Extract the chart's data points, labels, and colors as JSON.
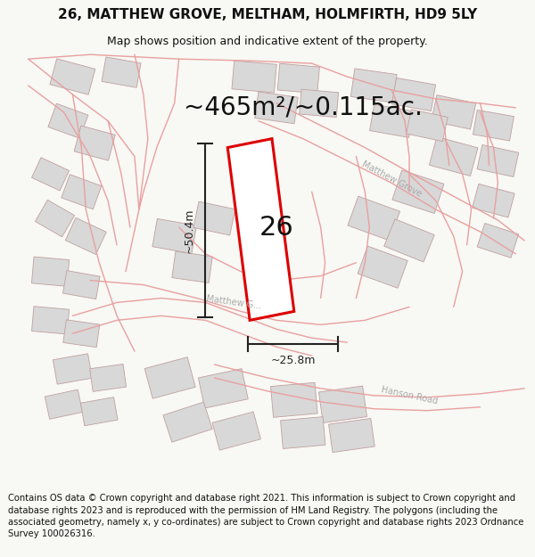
{
  "title_line1": "26, MATTHEW GROVE, MELTHAM, HOLMFIRTH, HD9 5LY",
  "title_line2": "Map shows position and indicative extent of the property.",
  "area_label": "~465m²/~0.115ac.",
  "plot_number": "26",
  "dim_vertical": "~50.4m",
  "dim_horizontal": "~25.8m",
  "footer_text": "Contains OS data © Crown copyright and database right 2021. This information is subject to Crown copyright and database rights 2023 and is reproduced with the permission of HM Land Registry. The polygons (including the associated geometry, namely x, y co-ordinates) are subject to Crown copyright and database rights 2023 Ordnance Survey 100026316.",
  "bg_color": "#ffffff",
  "page_color": "#f8f8f4",
  "map_bg": "#ffffff",
  "plot_fill": "#ffffff",
  "plot_edge": "#dd0000",
  "road_color": "#e8a0a0",
  "bldg_fill": "#d8d8d8",
  "bldg_edge": "#c0a0a0",
  "dim_color": "#222222",
  "text_color": "#111111",
  "street_label_color": "#aaaaaa",
  "title_fs": 11,
  "subtitle_fs": 9,
  "area_fs": 20,
  "plot_num_fs": 22,
  "dim_fs": 9,
  "footer_fs": 7.2,
  "street_fs": 7,
  "road_lw": 1.0,
  "plot_lw": 2.2,
  "bldg_lw": 0.6
}
